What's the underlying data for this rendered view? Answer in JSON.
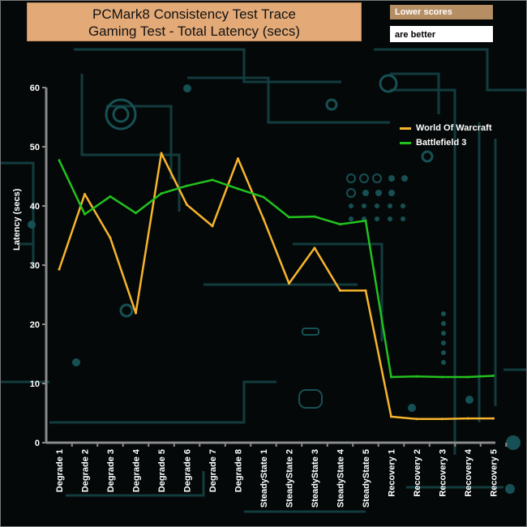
{
  "title_line1": "PCMark8 Consistency Test Trace",
  "title_line2": "Gaming Test -  Total Latency (secs)",
  "note_line1": "Lower scores",
  "note_line2": "are better",
  "chart_data": {
    "type": "line",
    "title": "PCMark8 Consistency Test Trace Gaming Test - Total Latency (secs)",
    "ylabel": "Latency (secs)",
    "xlabel": "",
    "ylim": [
      0,
      60
    ],
    "yticks": [
      0,
      10,
      20,
      30,
      40,
      50,
      60
    ],
    "grid": false,
    "legend_position": "top-right",
    "categories": [
      "Degrade 1",
      "Degrade 2",
      "Degrade 3",
      "Degrade 4",
      "Degrade 5",
      "Degrade 6",
      "Degrade 7",
      "Degrade 8",
      "SteadyState 1",
      "SteadyState 2",
      "SteadyState 3",
      "SteadyState 4",
      "SteadyState 5",
      "Recovery 1",
      "Recovery 2",
      "Recovery 3",
      "Recovery 4",
      "Recovery 5"
    ],
    "series": [
      {
        "name": "World Of Warcraft",
        "color": "#f7b52d",
        "values": [
          29.3,
          42.0,
          34.6,
          21.9,
          48.9,
          40.2,
          36.6,
          48.0,
          37.8,
          26.9,
          32.9,
          25.7,
          25.7,
          4.4,
          4.0,
          4.0,
          4.1,
          4.1
        ]
      },
      {
        "name": "Battlefield 3",
        "color": "#22c21e",
        "values": [
          47.7,
          38.6,
          41.6,
          38.8,
          42.1,
          43.4,
          44.4,
          42.9,
          41.5,
          38.1,
          38.2,
          36.9,
          37.5,
          11.1,
          11.2,
          11.1,
          11.1,
          11.3
        ]
      }
    ]
  }
}
